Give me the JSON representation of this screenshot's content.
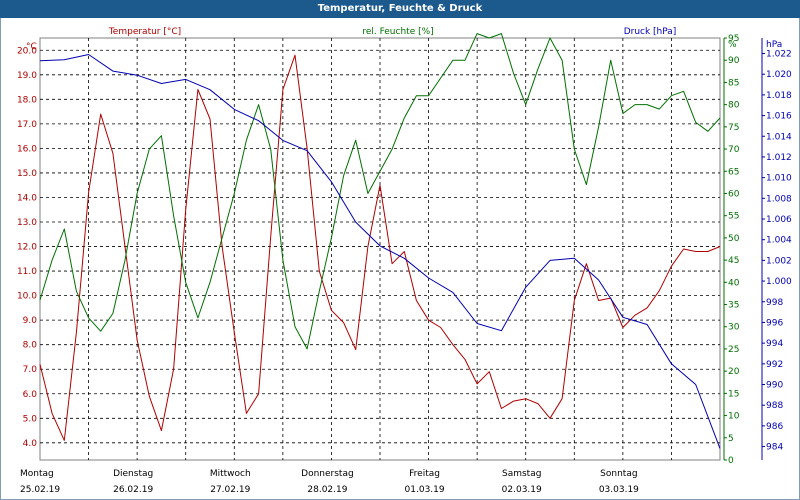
{
  "window": {
    "title": "Temperatur, Feuchte & Druck"
  },
  "colors": {
    "temperature": "#b00000",
    "humidity": "#007000",
    "pressure": "#0000b0",
    "grid": "#000000"
  },
  "chart_data": {
    "type": "line",
    "title": "Temperatur, Feuchte & Druck",
    "x_axis": {
      "range": [
        "2019-02-25T00:00",
        "2019-03-04T00:00"
      ],
      "ticks": [
        {
          "day": "Montag",
          "date": "25.02.19"
        },
        {
          "day": "Dienstag",
          "date": "26.02.19"
        },
        {
          "day": "Mittwoch",
          "date": "27.02.19"
        },
        {
          "day": "Donnerstag",
          "date": "28.02.19"
        },
        {
          "day": "Freitag",
          "date": "01.03.19"
        },
        {
          "day": "Samstag",
          "date": "02.03.19"
        },
        {
          "day": "Sonntag",
          "date": "03.03.19"
        }
      ]
    },
    "axes": {
      "left": {
        "label": "Temperatur [°C]",
        "unit": "°C",
        "range": [
          3.3,
          20.5
        ],
        "ticks": [
          "4.0",
          "5.0",
          "6.0",
          "7.0",
          "8.0",
          "9.0",
          "10.0",
          "11.0",
          "12.0",
          "13.0",
          "14.0",
          "15.0",
          "16.0",
          "17.0",
          "18.0",
          "19.0",
          "20.0"
        ]
      },
      "right1": {
        "label": "rel. Feuchte [%]",
        "unit": "%",
        "range": [
          0,
          95
        ],
        "ticks": [
          "0",
          "5",
          "10",
          "15",
          "20",
          "25",
          "30",
          "35",
          "40",
          "45",
          "50",
          "55",
          "60",
          "65",
          "70",
          "75",
          "80",
          "85",
          "90",
          "95"
        ]
      },
      "right2": {
        "label": "Druck [hPa]",
        "unit": "hPa",
        "range": [
          982.7,
          1023.5
        ],
        "ticks": [
          "984",
          "986",
          "988",
          "990",
          "992",
          "994",
          "996",
          "998",
          "1.000",
          "1.002",
          "1.004",
          "1.006",
          "1.008",
          "1.010",
          "1.012",
          "1.014",
          "1.016",
          "1.018",
          "1.020",
          "1.022"
        ]
      }
    },
    "grid": true,
    "series": [
      {
        "name": "Temperatur [°C]",
        "axis": "left",
        "color": "#b00000",
        "x": [
          "2019-02-25T00:00",
          "2019-02-25T03:00",
          "2019-02-25T06:00",
          "2019-02-25T09:00",
          "2019-02-25T12:00",
          "2019-02-25T15:00",
          "2019-02-25T18:00",
          "2019-02-25T21:00",
          "2019-02-26T00:00",
          "2019-02-26T03:00",
          "2019-02-26T06:00",
          "2019-02-26T09:00",
          "2019-02-26T12:00",
          "2019-02-26T15:00",
          "2019-02-26T18:00",
          "2019-02-26T21:00",
          "2019-02-27T00:00",
          "2019-02-27T03:00",
          "2019-02-27T06:00",
          "2019-02-27T09:00",
          "2019-02-27T12:00",
          "2019-02-27T15:00",
          "2019-02-27T18:00",
          "2019-02-27T21:00",
          "2019-02-28T00:00",
          "2019-02-28T03:00",
          "2019-02-28T06:00",
          "2019-02-28T09:00",
          "2019-02-28T12:00",
          "2019-02-28T15:00",
          "2019-02-28T18:00",
          "2019-02-28T21:00",
          "2019-03-01T00:00",
          "2019-03-01T03:00",
          "2019-03-01T06:00",
          "2019-03-01T09:00",
          "2019-03-01T12:00",
          "2019-03-01T15:00",
          "2019-03-01T18:00",
          "2019-03-01T21:00",
          "2019-03-02T00:00",
          "2019-03-02T03:00",
          "2019-03-02T06:00",
          "2019-03-02T09:00",
          "2019-03-02T12:00",
          "2019-03-02T15:00",
          "2019-03-02T18:00",
          "2019-03-02T21:00",
          "2019-03-03T00:00",
          "2019-03-03T03:00",
          "2019-03-03T06:00",
          "2019-03-03T09:00",
          "2019-03-03T12:00",
          "2019-03-03T15:00",
          "2019-03-03T18:00",
          "2019-03-03T21:00",
          "2019-03-04T00:00"
        ],
        "values": [
          7.2,
          5.2,
          4.1,
          8.5,
          14.2,
          17.4,
          15.8,
          12.0,
          8.2,
          5.9,
          4.5,
          7.0,
          13.5,
          18.4,
          17.2,
          12.0,
          8.5,
          5.2,
          6.0,
          12.4,
          18.4,
          19.8,
          16.0,
          11.0,
          9.4,
          8.9,
          7.8,
          12.0,
          14.5,
          11.3,
          11.8,
          9.8,
          9.0,
          8.7,
          8.0,
          7.4,
          6.4,
          6.9,
          5.4,
          5.7,
          5.8,
          5.6,
          5.0,
          5.8,
          9.8,
          11.3,
          9.8,
          9.9,
          8.7,
          9.2,
          9.5,
          10.2,
          11.2,
          11.9,
          11.8,
          11.8,
          12.0
        ]
      },
      {
        "name": "rel. Feuchte [%]",
        "axis": "right1",
        "color": "#007000",
        "x": [
          "2019-02-25T00:00",
          "2019-02-25T03:00",
          "2019-02-25T06:00",
          "2019-02-25T09:00",
          "2019-02-25T12:00",
          "2019-02-25T15:00",
          "2019-02-25T18:00",
          "2019-02-25T21:00",
          "2019-02-26T00:00",
          "2019-02-26T03:00",
          "2019-02-26T06:00",
          "2019-02-26T09:00",
          "2019-02-26T12:00",
          "2019-02-26T15:00",
          "2019-02-26T18:00",
          "2019-02-26T21:00",
          "2019-02-27T00:00",
          "2019-02-27T03:00",
          "2019-02-27T06:00",
          "2019-02-27T09:00",
          "2019-02-27T12:00",
          "2019-02-27T15:00",
          "2019-02-27T18:00",
          "2019-02-27T21:00",
          "2019-02-28T00:00",
          "2019-02-28T03:00",
          "2019-02-28T06:00",
          "2019-02-28T09:00",
          "2019-02-28T12:00",
          "2019-02-28T15:00",
          "2019-02-28T18:00",
          "2019-02-28T21:00",
          "2019-03-01T00:00",
          "2019-03-01T03:00",
          "2019-03-01T06:00",
          "2019-03-01T09:00",
          "2019-03-01T12:00",
          "2019-03-01T15:00",
          "2019-03-01T18:00",
          "2019-03-01T21:00",
          "2019-03-02T00:00",
          "2019-03-02T03:00",
          "2019-03-02T06:00",
          "2019-03-02T09:00",
          "2019-03-02T12:00",
          "2019-03-02T15:00",
          "2019-03-02T18:00",
          "2019-03-02T21:00",
          "2019-03-03T00:00",
          "2019-03-03T03:00",
          "2019-03-03T06:00",
          "2019-03-03T09:00",
          "2019-03-03T12:00",
          "2019-03-03T15:00",
          "2019-03-03T18:00",
          "2019-03-03T21:00",
          "2019-03-04T00:00"
        ],
        "values": [
          36,
          45,
          52,
          38,
          32,
          29,
          33,
          45,
          60,
          70,
          73,
          55,
          40,
          32,
          40,
          50,
          60,
          72,
          80,
          70,
          45,
          30,
          25,
          38,
          50,
          64,
          72,
          60,
          65,
          70,
          77,
          82,
          82,
          86,
          90,
          90,
          96,
          95,
          96,
          87,
          80,
          88,
          95,
          90,
          70,
          62,
          75,
          90,
          78,
          80,
          80,
          79,
          82,
          83,
          76,
          74,
          77
        ]
      },
      {
        "name": "Druck [hPa]",
        "axis": "right2",
        "color": "#0000b0",
        "x": [
          "2019-02-25T00:00",
          "2019-02-25T06:00",
          "2019-02-25T12:00",
          "2019-02-25T18:00",
          "2019-02-26T00:00",
          "2019-02-26T06:00",
          "2019-02-26T12:00",
          "2019-02-26T18:00",
          "2019-02-27T00:00",
          "2019-02-27T06:00",
          "2019-02-27T12:00",
          "2019-02-27T18:00",
          "2019-02-28T00:00",
          "2019-02-28T06:00",
          "2019-02-28T12:00",
          "2019-02-28T18:00",
          "2019-03-01T00:00",
          "2019-03-01T06:00",
          "2019-03-01T12:00",
          "2019-03-01T18:00",
          "2019-03-02T00:00",
          "2019-03-02T06:00",
          "2019-03-02T12:00",
          "2019-03-02T18:00",
          "2019-03-03T00:00",
          "2019-03-03T06:00",
          "2019-03-03T12:00",
          "2019-03-03T18:00",
          "2019-03-04T00:00"
        ],
        "values": [
          1021.3,
          1021.4,
          1021.9,
          1020.3,
          1019.9,
          1019.1,
          1019.5,
          1018.5,
          1016.6,
          1015.5,
          1013.6,
          1012.6,
          1009.6,
          1005.7,
          1003.4,
          1002.2,
          1000.3,
          998.9,
          995.9,
          995.2,
          999.4,
          1002.0,
          1002.2,
          1000.1,
          996.5,
          995.8,
          992.0,
          990.0,
          983.8
        ]
      }
    ]
  }
}
